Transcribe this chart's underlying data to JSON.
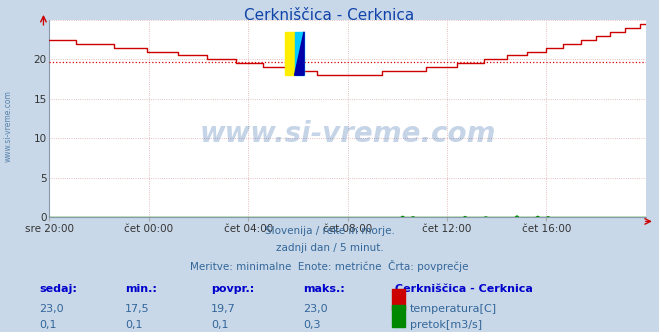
{
  "title": "Cerkniščica - Cerknica",
  "title_color": "#1144aa",
  "bg_color": "#c8d8e8",
  "plot_bg_color": "#ffffff",
  "grid_color": "#ddaaaa",
  "x_labels": [
    "sre 20:00",
    "čet 00:00",
    "čet 04:00",
    "čet 08:00",
    "čet 12:00",
    "čet 16:00"
  ],
  "x_ticks_norm": [
    0.0,
    0.1667,
    0.3333,
    0.5,
    0.6667,
    0.8333
  ],
  "ylim": [
    0,
    25
  ],
  "yticks": [
    0,
    5,
    10,
    15,
    20
  ],
  "avg_line_value": 19.7,
  "avg_line_color": "#dd0000",
  "temp_line_color": "#cc0000",
  "flow_line_color": "#008800",
  "watermark_text": "www.si-vreme.com",
  "watermark_color": "#3366aa",
  "subtitle_lines": [
    "Slovenija / reke in morje.",
    "zadnji dan / 5 minut.",
    "Meritve: minimalne  Enote: metrične  Črta: povprečje"
  ],
  "subtitle_color": "#336699",
  "table_headers": [
    "sedaj:",
    "min.:",
    "povpr.:",
    "maks.:"
  ],
  "table_row1": [
    "23,0",
    "17,5",
    "19,7",
    "23,0"
  ],
  "table_row2": [
    "0,1",
    "0,1",
    "0,1",
    "0,3"
  ],
  "table_label": "Cerkniščica - Cerknica",
  "table_label1": "temperatura[C]",
  "table_label2": "pretok[m3/s]",
  "header_color": "#0000cc",
  "value_color": "#336699",
  "left_label_color": "#336699",
  "n_points": 288
}
